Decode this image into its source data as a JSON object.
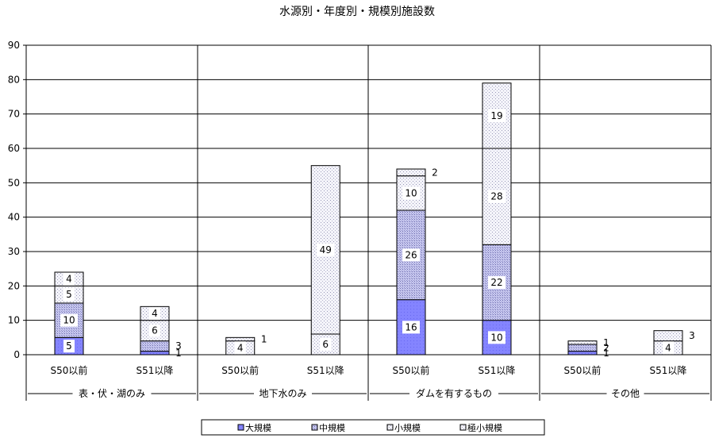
{
  "chart_data": {
    "type": "bar",
    "stacked": true,
    "title": "水源別・年度別・規模別施設数",
    "ylim": [
      0,
      90
    ],
    "yticks": [
      0,
      10,
      20,
      30,
      40,
      50,
      60,
      70,
      80,
      90
    ],
    "grid": true,
    "legend_position": "bottom",
    "groups": [
      "表・伏・湖のみ",
      "地下水のみ",
      "ダムを有するもの",
      "その他"
    ],
    "categories": [
      "S50以前",
      "S51以降",
      "S50以前",
      "S51以降",
      "S50以前",
      "S51以降",
      "S50以前",
      "S51以降"
    ],
    "category_group": [
      0,
      0,
      1,
      1,
      2,
      2,
      3,
      3
    ],
    "series": [
      {
        "name": "大規模",
        "values": [
          5,
          1,
          0,
          0,
          16,
          10,
          1,
          0
        ],
        "color": "#8080ff",
        "pattern": "light"
      },
      {
        "name": "中規模",
        "values": [
          10,
          3,
          0,
          0,
          26,
          22,
          2,
          0
        ],
        "color": "#b0b0f0",
        "pattern": "dense"
      },
      {
        "name": "小規模",
        "values": [
          5,
          6,
          4,
          6,
          10,
          28,
          0,
          4
        ],
        "color": "#ececf4",
        "pattern": "sparse"
      },
      {
        "name": "極小規模",
        "values": [
          4,
          4,
          1,
          49,
          2,
          19,
          1,
          3
        ],
        "color": "#ffffff",
        "pattern": "sparse"
      }
    ],
    "data_labels": [
      [
        "5",
        "10",
        "5",
        "4"
      ],
      [
        "1",
        "3",
        "6",
        "4"
      ],
      [
        "",
        "",
        "4",
        "1"
      ],
      [
        "",
        "",
        "6",
        "49"
      ],
      [
        "16",
        "26",
        "10",
        "2"
      ],
      [
        "10",
        "22",
        "28",
        "19"
      ],
      [
        "1",
        "2",
        "",
        "1"
      ],
      [
        "",
        "",
        "4",
        "3"
      ]
    ]
  }
}
